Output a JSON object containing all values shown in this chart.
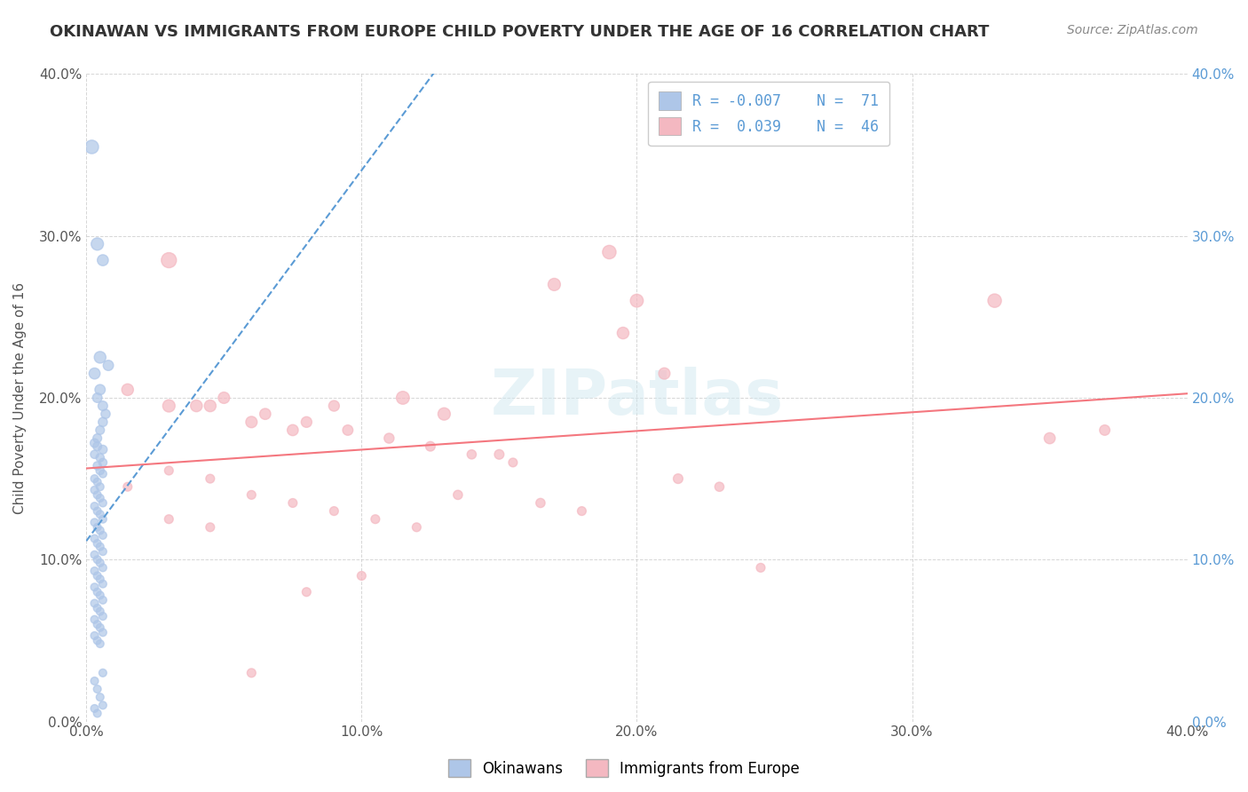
{
  "title": "OKINAWAN VS IMMIGRANTS FROM EUROPE CHILD POVERTY UNDER THE AGE OF 16 CORRELATION CHART",
  "source": "Source: ZipAtlas.com",
  "ylabel": "Child Poverty Under the Age of 16",
  "xlabel_ticks": [
    "0.0%",
    "10.0%",
    "20.0%",
    "30.0%",
    "40.0%"
  ],
  "ylabel_ticks": [
    "0.0%",
    "10.0%",
    "20.0%",
    "30.0%",
    "40.0%"
  ],
  "xlim": [
    0.0,
    0.4
  ],
  "ylim": [
    0.0,
    0.4
  ],
  "legend_r1": "R = -0.007",
  "legend_n1": "N =  71",
  "legend_r2": "R =  0.039",
  "legend_n2": "N =  46",
  "okinawan_color": "#aec6e8",
  "immigrant_color": "#f4b8c1",
  "okinawan_line_color": "#5b9bd5",
  "immigrant_line_color": "#f4777f",
  "watermark": "ZIPatlas",
  "okinawan_points": [
    [
      0.002,
      0.355
    ],
    [
      0.004,
      0.295
    ],
    [
      0.006,
      0.285
    ],
    [
      0.005,
      0.225
    ],
    [
      0.008,
      0.22
    ],
    [
      0.003,
      0.215
    ],
    [
      0.005,
      0.205
    ],
    [
      0.004,
      0.2
    ],
    [
      0.006,
      0.195
    ],
    [
      0.007,
      0.19
    ],
    [
      0.006,
      0.185
    ],
    [
      0.005,
      0.18
    ],
    [
      0.004,
      0.175
    ],
    [
      0.003,
      0.172
    ],
    [
      0.004,
      0.17
    ],
    [
      0.006,
      0.168
    ],
    [
      0.003,
      0.165
    ],
    [
      0.005,
      0.163
    ],
    [
      0.006,
      0.16
    ],
    [
      0.004,
      0.158
    ],
    [
      0.005,
      0.155
    ],
    [
      0.006,
      0.153
    ],
    [
      0.003,
      0.15
    ],
    [
      0.004,
      0.148
    ],
    [
      0.005,
      0.145
    ],
    [
      0.003,
      0.143
    ],
    [
      0.004,
      0.14
    ],
    [
      0.005,
      0.138
    ],
    [
      0.006,
      0.135
    ],
    [
      0.003,
      0.133
    ],
    [
      0.004,
      0.13
    ],
    [
      0.005,
      0.128
    ],
    [
      0.006,
      0.125
    ],
    [
      0.003,
      0.123
    ],
    [
      0.004,
      0.12
    ],
    [
      0.005,
      0.118
    ],
    [
      0.006,
      0.115
    ],
    [
      0.003,
      0.113
    ],
    [
      0.004,
      0.11
    ],
    [
      0.005,
      0.108
    ],
    [
      0.006,
      0.105
    ],
    [
      0.003,
      0.103
    ],
    [
      0.004,
      0.1
    ],
    [
      0.005,
      0.098
    ],
    [
      0.006,
      0.095
    ],
    [
      0.003,
      0.093
    ],
    [
      0.004,
      0.09
    ],
    [
      0.005,
      0.088
    ],
    [
      0.006,
      0.085
    ],
    [
      0.003,
      0.083
    ],
    [
      0.004,
      0.08
    ],
    [
      0.005,
      0.078
    ],
    [
      0.006,
      0.075
    ],
    [
      0.003,
      0.073
    ],
    [
      0.004,
      0.07
    ],
    [
      0.005,
      0.068
    ],
    [
      0.006,
      0.065
    ],
    [
      0.003,
      0.063
    ],
    [
      0.004,
      0.06
    ],
    [
      0.005,
      0.058
    ],
    [
      0.006,
      0.055
    ],
    [
      0.003,
      0.053
    ],
    [
      0.004,
      0.05
    ],
    [
      0.005,
      0.048
    ],
    [
      0.006,
      0.03
    ],
    [
      0.003,
      0.025
    ],
    [
      0.004,
      0.02
    ],
    [
      0.005,
      0.015
    ],
    [
      0.006,
      0.01
    ],
    [
      0.003,
      0.008
    ],
    [
      0.004,
      0.005
    ]
  ],
  "immigrant_points": [
    [
      0.03,
      0.285
    ],
    [
      0.03,
      0.195
    ],
    [
      0.19,
      0.29
    ],
    [
      0.115,
      0.2
    ],
    [
      0.13,
      0.19
    ],
    [
      0.015,
      0.205
    ],
    [
      0.045,
      0.195
    ],
    [
      0.06,
      0.185
    ],
    [
      0.075,
      0.18
    ],
    [
      0.09,
      0.195
    ],
    [
      0.04,
      0.195
    ],
    [
      0.05,
      0.2
    ],
    [
      0.065,
      0.19
    ],
    [
      0.08,
      0.185
    ],
    [
      0.095,
      0.18
    ],
    [
      0.11,
      0.175
    ],
    [
      0.125,
      0.17
    ],
    [
      0.14,
      0.165
    ],
    [
      0.155,
      0.16
    ],
    [
      0.17,
      0.27
    ],
    [
      0.03,
      0.155
    ],
    [
      0.045,
      0.15
    ],
    [
      0.2,
      0.26
    ],
    [
      0.215,
      0.15
    ],
    [
      0.23,
      0.145
    ],
    [
      0.245,
      0.095
    ],
    [
      0.015,
      0.145
    ],
    [
      0.06,
      0.14
    ],
    [
      0.075,
      0.135
    ],
    [
      0.09,
      0.13
    ],
    [
      0.105,
      0.125
    ],
    [
      0.12,
      0.12
    ],
    [
      0.135,
      0.14
    ],
    [
      0.15,
      0.165
    ],
    [
      0.165,
      0.135
    ],
    [
      0.18,
      0.13
    ],
    [
      0.195,
      0.24
    ],
    [
      0.21,
      0.215
    ],
    [
      0.03,
      0.125
    ],
    [
      0.045,
      0.12
    ],
    [
      0.1,
      0.09
    ],
    [
      0.33,
      0.26
    ],
    [
      0.35,
      0.175
    ],
    [
      0.37,
      0.18
    ],
    [
      0.06,
      0.03
    ],
    [
      0.08,
      0.08
    ]
  ],
  "okinawan_sizes": [
    120,
    100,
    80,
    90,
    70,
    80,
    70,
    60,
    60,
    55,
    55,
    50,
    50,
    50,
    50,
    50,
    45,
    45,
    45,
    45,
    45,
    40,
    40,
    40,
    40,
    40,
    40,
    40,
    40,
    40,
    40,
    40,
    40,
    40,
    40,
    40,
    40,
    40,
    40,
    40,
    40,
    40,
    40,
    40,
    40,
    40,
    40,
    40,
    40,
    40,
    40,
    40,
    40,
    40,
    40,
    40,
    40,
    40,
    40,
    40,
    40,
    40,
    40,
    40,
    40,
    40,
    40,
    40,
    40,
    40,
    40
  ],
  "immigrant_sizes": [
    150,
    100,
    120,
    110,
    100,
    90,
    90,
    85,
    80,
    75,
    90,
    85,
    80,
    75,
    70,
    65,
    60,
    55,
    50,
    100,
    50,
    50,
    110,
    60,
    55,
    50,
    50,
    50,
    50,
    50,
    50,
    50,
    55,
    60,
    55,
    50,
    90,
    85,
    50,
    50,
    50,
    120,
    80,
    70,
    50,
    50
  ]
}
